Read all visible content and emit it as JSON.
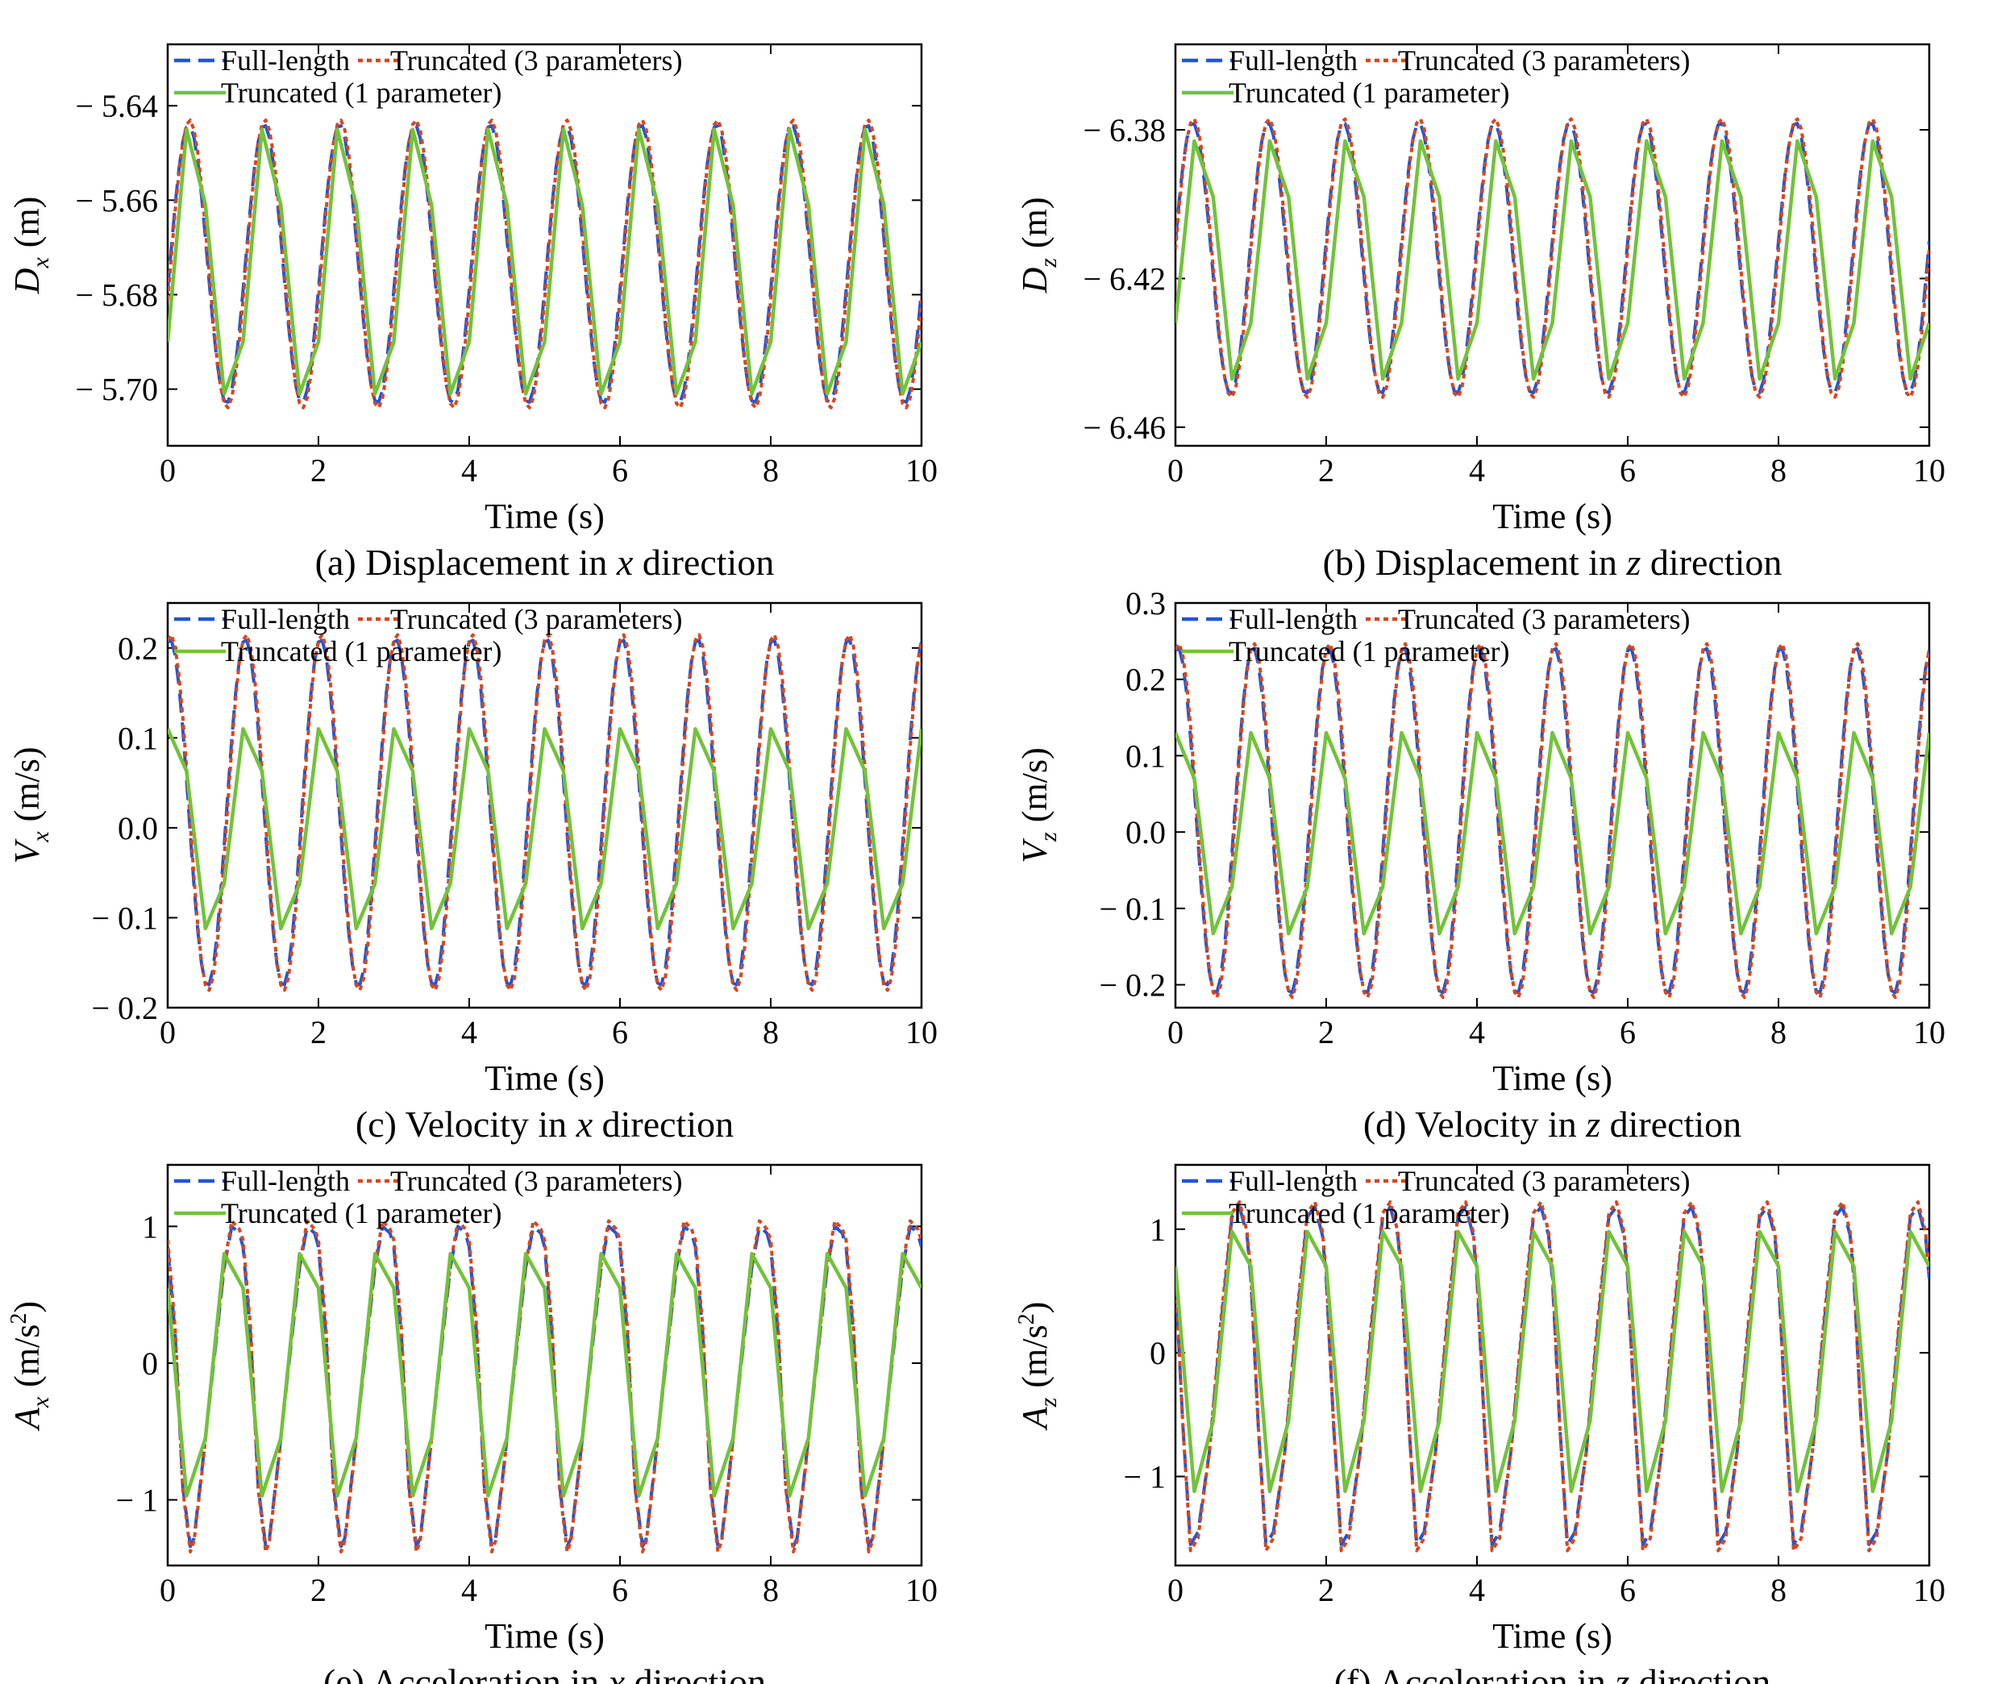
{
  "figure": {
    "legend_labels": {
      "full": "Full-length",
      "trunc3": "Truncated (3 parameters)",
      "trunc1": "Truncated (1 parameter)"
    },
    "colors": {
      "full": "#2254d8",
      "trunc3": "#d6471f",
      "trunc1": "#72c23a"
    },
    "line_styles": {
      "full": "dashed",
      "trunc3": "dotted",
      "trunc1": "solid"
    }
  },
  "chart_data": [
    {
      "type": "line",
      "caption": "(a) Displacement in x direction",
      "caption_parts": [
        "(a) Displacement in ",
        "x",
        " direction"
      ],
      "xlabel": "Time (s)",
      "ylabel_main": "D",
      "ylabel_sub": "x",
      "ylabel_sup": "",
      "ylabel_unit": "(m)",
      "xlim": [
        0,
        10
      ],
      "ylim": [
        -5.712,
        -5.627
      ],
      "y_inverted": true,
      "xticks": [
        0,
        2,
        4,
        6,
        8,
        10
      ],
      "xtick_labels": [
        "0",
        "2",
        "4",
        "6",
        "8",
        "10"
      ],
      "yticks": [
        -5.64,
        -5.66,
        -5.68,
        -5.7
      ],
      "ytick_labels": [
        "− 5.64",
        "− 5.66",
        "− 5.68",
        "− 5.70"
      ],
      "period": 1.0,
      "series": [
        {
          "name": "Full-length",
          "kind": "sine",
          "offset": -5.6735,
          "amplitude": 0.0295,
          "phase_time": 0.28,
          "dt": 0.05
        },
        {
          "name": "Truncated (3 parameters)",
          "kind": "sine",
          "offset": -5.6735,
          "amplitude": 0.0305,
          "phase_time": 0.29,
          "dt": 0.05
        },
        {
          "name": "Truncated (1 parameter)",
          "kind": "pattern",
          "pattern_times": [
            0.0,
            0.25,
            0.5,
            0.75
          ],
          "pattern_values": [
            -5.69,
            -5.645,
            -5.661,
            -5.701
          ]
        }
      ]
    },
    {
      "type": "line",
      "caption": "(b) Displacement in z direction",
      "caption_parts": [
        "(b) Displacement in ",
        "z",
        " direction"
      ],
      "xlabel": "Time (s)",
      "ylabel_main": "D",
      "ylabel_sub": "z",
      "ylabel_sup": "",
      "ylabel_unit": "(m)",
      "xlim": [
        0,
        10
      ],
      "ylim": [
        -6.465,
        -6.357
      ],
      "y_inverted": true,
      "xticks": [
        0,
        2,
        4,
        6,
        8,
        10
      ],
      "xtick_labels": [
        "0",
        "2",
        "4",
        "6",
        "8",
        "10"
      ],
      "yticks": [
        -6.38,
        -6.42,
        -6.46
      ],
      "ytick_labels": [
        "− 6.38",
        "− 6.42",
        "− 6.46"
      ],
      "period": 1.0,
      "series": [
        {
          "name": "Full-length",
          "kind": "sine",
          "offset": -6.4145,
          "amplitude": 0.0365,
          "phase_time": 0.23,
          "dt": 0.05
        },
        {
          "name": "Truncated (3 parameters)",
          "kind": "sine",
          "offset": -6.4145,
          "amplitude": 0.0375,
          "phase_time": 0.24,
          "dt": 0.05
        },
        {
          "name": "Truncated (1 parameter)",
          "kind": "pattern",
          "pattern_times": [
            0.0,
            0.25,
            0.5,
            0.75
          ],
          "pattern_values": [
            -6.432,
            -6.383,
            -6.398,
            -6.447
          ]
        }
      ]
    },
    {
      "type": "line",
      "caption": "(c) Velocity in x direction",
      "caption_parts": [
        "(c) Velocity in ",
        "x",
        " direction"
      ],
      "xlabel": "Time (s)",
      "ylabel_main": "V",
      "ylabel_sub": "x",
      "ylabel_sup": "",
      "ylabel_unit": "(m/s)",
      "xlim": [
        0,
        10
      ],
      "ylim": [
        -0.2,
        0.25
      ],
      "y_inverted": false,
      "xticks": [
        0,
        2,
        4,
        6,
        8,
        10
      ],
      "xtick_labels": [
        "0",
        "2",
        "4",
        "6",
        "8",
        "10"
      ],
      "yticks": [
        -0.2,
        -0.1,
        0.0,
        0.1,
        0.2
      ],
      "ytick_labels": [
        "− 0.2",
        "− 0.1",
        "0.0",
        "0.1",
        "0.2"
      ],
      "period": 1.0,
      "series": [
        {
          "name": "Full-length",
          "kind": "sine",
          "offset": 0.017,
          "amplitude": 0.193,
          "phase_time": 0.03,
          "dt": 0.05
        },
        {
          "name": "Truncated (3 parameters)",
          "kind": "sine",
          "offset": 0.017,
          "amplitude": 0.198,
          "phase_time": 0.04,
          "dt": 0.05
        },
        {
          "name": "Truncated (1 parameter)",
          "kind": "pattern",
          "pattern_times": [
            0.0,
            0.25,
            0.5,
            0.75
          ],
          "pattern_values": [
            0.11,
            0.063,
            -0.112,
            -0.062
          ]
        }
      ]
    },
    {
      "type": "line",
      "caption": "(d) Velocity in z direction",
      "caption_parts": [
        "(d) Velocity in ",
        "z",
        " direction"
      ],
      "xlabel": "Time (s)",
      "ylabel_main": "V",
      "ylabel_sub": "z",
      "ylabel_sup": "",
      "ylabel_unit": "(m/s)",
      "xlim": [
        0,
        10
      ],
      "ylim": [
        -0.23,
        0.3
      ],
      "y_inverted": false,
      "xticks": [
        0,
        2,
        4,
        6,
        8,
        10
      ],
      "xtick_labels": [
        "0",
        "2",
        "4",
        "6",
        "8",
        "10"
      ],
      "yticks": [
        -0.2,
        -0.1,
        0.0,
        0.1,
        0.2,
        0.3
      ],
      "ytick_labels": [
        "− 0.2",
        "− 0.1",
        "0.0",
        "0.1",
        "0.2",
        "0.3"
      ],
      "period": 1.0,
      "series": [
        {
          "name": "Full-length",
          "kind": "sine",
          "offset": 0.015,
          "amplitude": 0.227,
          "phase_time": 0.03,
          "dt": 0.05
        },
        {
          "name": "Truncated (3 parameters)",
          "kind": "sine",
          "offset": 0.015,
          "amplitude": 0.232,
          "phase_time": 0.04,
          "dt": 0.05
        },
        {
          "name": "Truncated (1 parameter)",
          "kind": "pattern",
          "pattern_times": [
            0.0,
            0.25,
            0.5,
            0.75
          ],
          "pattern_values": [
            0.13,
            0.07,
            -0.133,
            -0.072
          ]
        }
      ]
    },
    {
      "type": "line",
      "caption": "(e) Acceleration in x direction",
      "caption_parts": [
        "(e) Acceleration in ",
        "x",
        " direction"
      ],
      "xlabel": "Time (s)",
      "ylabel_main": "A",
      "ylabel_sub": "x",
      "ylabel_sup": "2",
      "ylabel_unit": "(m/s",
      "xlim": [
        0,
        10
      ],
      "ylim": [
        -1.48,
        1.45
      ],
      "y_inverted": false,
      "xticks": [
        0,
        2,
        4,
        6,
        8,
        10
      ],
      "xtick_labels": [
        "0",
        "2",
        "4",
        "6",
        "8",
        "10"
      ],
      "yticks": [
        -1,
        0,
        1
      ],
      "ytick_labels": [
        "− 1",
        "0",
        "1"
      ],
      "period": 1.0,
      "series": [
        {
          "name": "Full-length",
          "kind": "pattern",
          "pattern_times": [
            0.0,
            0.1,
            0.2,
            0.3,
            0.35,
            0.45,
            0.6,
            0.75,
            0.85,
            0.95
          ],
          "pattern_values": [
            0.85,
            0.2,
            -0.9,
            -1.34,
            -1.28,
            -0.8,
            -0.05,
            0.7,
            1.0,
            0.95
          ]
        },
        {
          "name": "Truncated (3 parameters)",
          "kind": "pattern",
          "pattern_times": [
            0.0,
            0.1,
            0.2,
            0.3,
            0.35,
            0.45,
            0.6,
            0.75,
            0.85,
            0.95
          ],
          "pattern_values": [
            0.9,
            0.25,
            -0.92,
            -1.38,
            -1.3,
            -0.82,
            -0.03,
            0.72,
            1.04,
            0.98
          ]
        },
        {
          "name": "Truncated (1 parameter)",
          "kind": "pattern",
          "pattern_times": [
            0.0,
            0.25,
            0.5,
            0.75
          ],
          "pattern_values": [
            0.55,
            -0.97,
            -0.55,
            0.8
          ]
        }
      ]
    },
    {
      "type": "line",
      "caption": "(f) Acceleration in z direction",
      "caption_parts": [
        "(f) Acceleration in ",
        "z",
        " direction"
      ],
      "xlabel": "Time (s)",
      "ylabel_main": "A",
      "ylabel_sub": "z",
      "ylabel_sup": "2",
      "ylabel_unit": "(m/s",
      "xlim": [
        0,
        10
      ],
      "ylim": [
        -1.72,
        1.52
      ],
      "y_inverted": false,
      "xticks": [
        0,
        2,
        4,
        6,
        8,
        10
      ],
      "xtick_labels": [
        "0",
        "2",
        "4",
        "6",
        "8",
        "10"
      ],
      "yticks": [
        -1,
        0,
        1
      ],
      "ytick_labels": [
        "− 1",
        "0",
        "1"
      ],
      "period": 1.0,
      "series": [
        {
          "name": "Full-length",
          "kind": "pattern",
          "pattern_times": [
            0.0,
            0.1,
            0.2,
            0.3,
            0.45,
            0.6,
            0.75,
            0.85,
            0.95
          ],
          "pattern_values": [
            0.6,
            -0.6,
            -1.55,
            -1.45,
            -0.8,
            0.2,
            1.1,
            1.18,
            0.95
          ]
        },
        {
          "name": "Truncated (3 parameters)",
          "kind": "pattern",
          "pattern_times": [
            0.0,
            0.1,
            0.2,
            0.3,
            0.45,
            0.6,
            0.75,
            0.85,
            0.95
          ],
          "pattern_values": [
            0.65,
            -0.6,
            -1.6,
            -1.5,
            -0.8,
            0.25,
            1.13,
            1.22,
            0.98
          ]
        },
        {
          "name": "Truncated (1 parameter)",
          "kind": "pattern",
          "pattern_times": [
            0.0,
            0.25,
            0.5,
            0.75
          ],
          "pattern_values": [
            0.7,
            -1.12,
            -0.55,
            0.98
          ]
        }
      ]
    }
  ]
}
